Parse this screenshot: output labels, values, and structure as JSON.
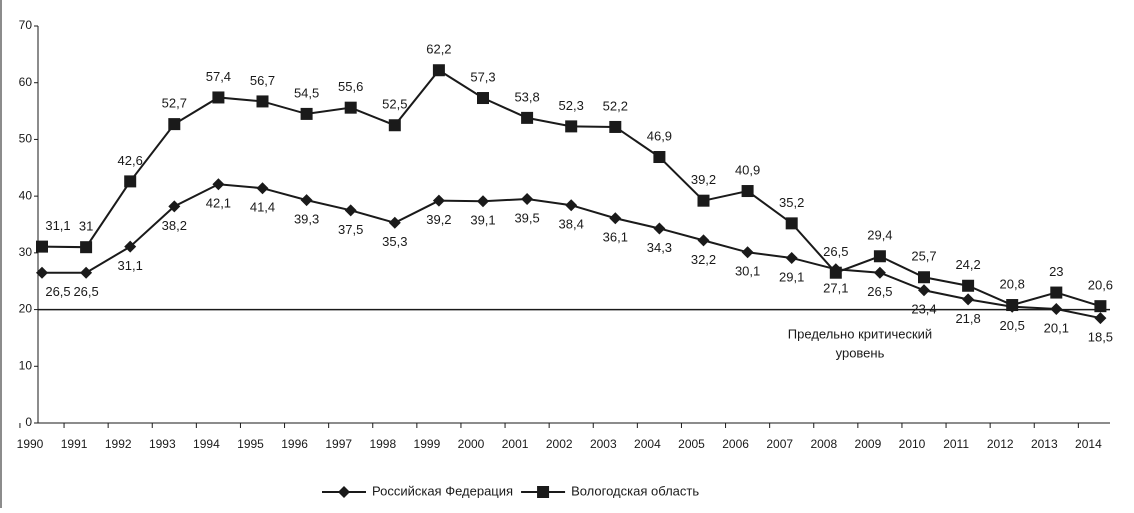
{
  "chart_data": {
    "type": "line",
    "categories": [
      "1990",
      "1991",
      "1992",
      "1993",
      "1994",
      "1995",
      "1996",
      "1997",
      "1998",
      "1999",
      "2000",
      "2001",
      "2002",
      "2003",
      "2004",
      "2005",
      "2006",
      "2007",
      "2008",
      "2009",
      "2010",
      "2011",
      "2012",
      "2013",
      "2014"
    ],
    "series": [
      {
        "name": "Российская Федерация",
        "color": "#1a1a1a",
        "marker": "diamond",
        "values": [
          26.5,
          26.5,
          31.1,
          38.2,
          42.1,
          41.4,
          39.3,
          37.5,
          35.3,
          39.2,
          39.1,
          39.5,
          38.4,
          36.1,
          34.3,
          32.2,
          30.1,
          29.1,
          27.1,
          26.5,
          23.4,
          21.8,
          20.5,
          20.1,
          18.5
        ],
        "value_labels": [
          "26,5",
          "26,5",
          "31,1",
          "38,2",
          "42,1",
          "41,4",
          "39,3",
          "37,5",
          "35,3",
          "39,2",
          "39,1",
          "39,5",
          "38,4",
          "36,1",
          "34,3",
          "32,2",
          "30,1",
          "29,1",
          "27,1",
          "26,5",
          "23,4",
          "21,8",
          "20,5",
          "20,1",
          "18,5"
        ]
      },
      {
        "name": "Вологодская область",
        "color": "#1a1a1a",
        "marker": "square",
        "values": [
          31.1,
          31,
          42.6,
          52.7,
          57.4,
          56.7,
          54.5,
          55.6,
          52.5,
          62.2,
          57.3,
          53.8,
          52.3,
          52.2,
          46.9,
          39.2,
          40.9,
          35.2,
          26.5,
          29.4,
          25.7,
          24.2,
          20.8,
          23,
          20.6
        ],
        "value_labels": [
          "31,1",
          "31",
          "42,6",
          "52,7",
          "57,4",
          "56,7",
          "54,5",
          "55,6",
          "52,5",
          "62,2",
          "57,3",
          "53,8",
          "52,3",
          "52,2",
          "46,9",
          "39,2",
          "40,9",
          "35,2",
          "26,5",
          "29,4",
          "25,7",
          "24,2",
          "20,8",
          "23",
          "20,6"
        ]
      }
    ],
    "ylim": [
      0,
      70
    ],
    "yticks": [
      0,
      10,
      20,
      30,
      40,
      50,
      60,
      70
    ],
    "reference_line": {
      "value": 20,
      "label": [
        "Предельно критический",
        "уровень"
      ]
    },
    "legend": "bottom"
  }
}
